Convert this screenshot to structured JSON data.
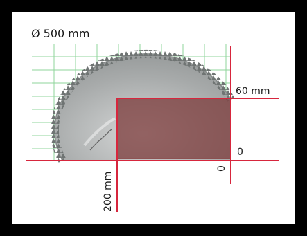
{
  "diagram": {
    "diameter_label": "Ø 500 mm",
    "cut_height_label": "60 mm",
    "zero_height_label": "0",
    "zero_position_label": "0",
    "cut_width_label": "200 mm",
    "colors": {
      "background_frame": "#000000",
      "panel": "#ffffff",
      "grid_green": "#8fd49b",
      "guide_red": "#d7263d",
      "saw_blade_grey": "#a9acac",
      "cut_area_red": "#7c3b3b"
    },
    "icon": "circular-saw-blade-icon"
  }
}
